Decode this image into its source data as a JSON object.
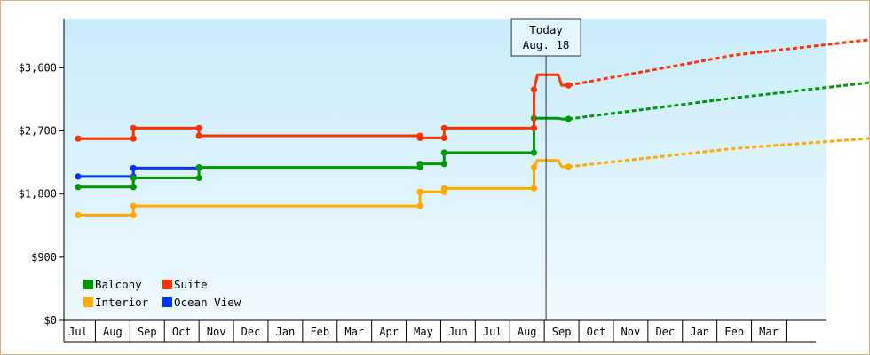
{
  "chart_data": {
    "type": "line",
    "title": "",
    "xlabel": "",
    "ylabel": "",
    "ylim": [
      0,
      4300
    ],
    "y_ticks": [
      {
        "value": 0,
        "label": "$0"
      },
      {
        "value": 900,
        "label": "$900"
      },
      {
        "value": 1800,
        "label": "$1,800"
      },
      {
        "value": 2700,
        "label": "$2,700"
      },
      {
        "value": 3600,
        "label": "$3,600"
      }
    ],
    "months": [
      "Jul",
      "Aug",
      "Sep",
      "Oct",
      "Nov",
      "Dec",
      "Jan",
      "Feb",
      "Mar",
      "Apr",
      "May",
      "Jun",
      "Jul",
      "Aug",
      "Sep",
      "Oct",
      "Nov",
      "Dec",
      "Jan",
      "Feb",
      "Mar"
    ],
    "today": {
      "line1": "Today",
      "line2": "Aug. 18",
      "month_index": 13.55
    },
    "legend_placement": "bottom-left",
    "series": [
      {
        "name": "Suite",
        "color": "#ff3300",
        "points": [
          [
            0,
            2590
          ],
          [
            1.6,
            2590
          ],
          [
            1.6,
            2740
          ],
          [
            3.5,
            2740
          ],
          [
            3.5,
            2630
          ],
          [
            9.9,
            2630
          ],
          [
            9.9,
            2600
          ],
          [
            10.6,
            2600
          ],
          [
            10.6,
            2740
          ],
          [
            13.2,
            2740
          ],
          [
            13.2,
            3290
          ],
          [
            13.3,
            3500
          ],
          [
            13.5,
            3500
          ],
          [
            13.9,
            3500
          ],
          [
            14.0,
            3350
          ],
          [
            14.2,
            3350
          ]
        ],
        "projection": [
          [
            14.2,
            3350
          ],
          [
            19,
            3780
          ],
          [
            24.2,
            4070
          ]
        ]
      },
      {
        "name": "Balcony",
        "color": "#009900",
        "points": [
          [
            0,
            1900
          ],
          [
            1.6,
            1900
          ],
          [
            1.6,
            2030
          ],
          [
            3.5,
            2030
          ],
          [
            3.5,
            2180
          ],
          [
            9.9,
            2180
          ],
          [
            9.9,
            2230
          ],
          [
            10.6,
            2230
          ],
          [
            10.6,
            2390
          ],
          [
            13.2,
            2390
          ],
          [
            13.2,
            2880
          ],
          [
            13.3,
            2880
          ],
          [
            13.9,
            2880
          ],
          [
            14.0,
            2870
          ],
          [
            14.2,
            2870
          ]
        ],
        "projection": [
          [
            14.2,
            2870
          ],
          [
            19,
            3170
          ],
          [
            24.2,
            3460
          ]
        ]
      },
      {
        "name": "Ocean View",
        "color": "#0033ff",
        "points": [
          [
            0,
            2050
          ],
          [
            1.6,
            2050
          ],
          [
            1.6,
            2170
          ],
          [
            3.5,
            2170
          ]
        ],
        "projection": []
      },
      {
        "name": "Interior",
        "color": "#ffaa00",
        "points": [
          [
            0,
            1500
          ],
          [
            1.6,
            1500
          ],
          [
            1.6,
            1630
          ],
          [
            9.9,
            1630
          ],
          [
            9.9,
            1830
          ],
          [
            10.6,
            1830
          ],
          [
            10.6,
            1880
          ],
          [
            13.2,
            1880
          ],
          [
            13.2,
            2180
          ],
          [
            13.3,
            2280
          ],
          [
            13.9,
            2280
          ],
          [
            14.0,
            2190
          ],
          [
            14.2,
            2190
          ]
        ],
        "projection": [
          [
            14.2,
            2190
          ],
          [
            19,
            2450
          ],
          [
            24.2,
            2640
          ]
        ]
      }
    ]
  },
  "legend": {
    "items": [
      {
        "name": "Balcony",
        "color": "#009900"
      },
      {
        "name": "Suite",
        "color": "#ff3300"
      },
      {
        "name": "Interior",
        "color": "#ffaa00"
      },
      {
        "name": "Ocean View",
        "color": "#0033ff"
      }
    ]
  }
}
